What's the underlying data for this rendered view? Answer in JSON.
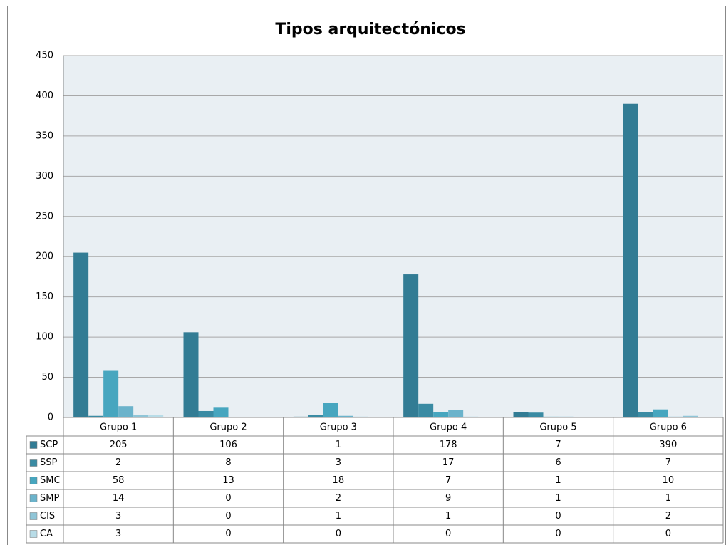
{
  "chart_data": {
    "type": "bar",
    "title": "Tipos arquitectónicos",
    "categories": [
      "Grupo 1",
      "Grupo 2",
      "Grupo 3",
      "Grupo 4",
      "Grupo 5",
      "Grupo 6"
    ],
    "series": [
      {
        "name": "SCP",
        "color": "#327c94",
        "values": [
          205,
          106,
          1,
          178,
          7,
          390
        ]
      },
      {
        "name": "SSP",
        "color": "#3a8ba3",
        "values": [
          2,
          8,
          3,
          17,
          6,
          7
        ]
      },
      {
        "name": "SMC",
        "color": "#47a6bf",
        "values": [
          58,
          13,
          18,
          7,
          1,
          10
        ]
      },
      {
        "name": "SMP",
        "color": "#6bb3cb",
        "values": [
          14,
          0,
          2,
          9,
          1,
          1
        ]
      },
      {
        "name": "CIS",
        "color": "#8fc5d7",
        "values": [
          3,
          0,
          1,
          1,
          0,
          2
        ]
      },
      {
        "name": "CA",
        "color": "#b8dce7",
        "values": [
          3,
          0,
          0,
          0,
          0,
          0
        ]
      }
    ],
    "ylim": [
      0,
      450
    ],
    "yticks": [
      0,
      50,
      100,
      150,
      200,
      250,
      300,
      350,
      400,
      450
    ],
    "grid": true,
    "data_table": true
  }
}
